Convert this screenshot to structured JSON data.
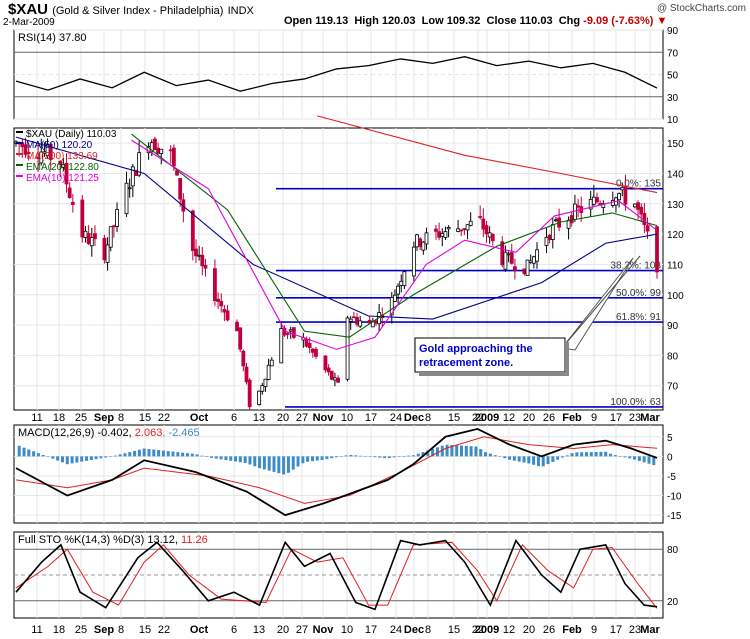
{
  "header": {
    "symbol": "$XAU",
    "name": "(Gold & Silver Index - Philadelphia)",
    "exchange": "INDX",
    "date": "2-Mar-2009",
    "open_label": "Open",
    "open": "119.13",
    "high_label": "High",
    "high": "120.03",
    "low_label": "Low",
    "low": "109.32",
    "close_label": "Close",
    "close": "110.03",
    "chg_label": "Chg",
    "chg": "-9.09 (-7.63%)",
    "watermark": "@ StockCharts.com"
  },
  "colors": {
    "up": "#000000",
    "down": "#c0003c",
    "ma50": "#00008b",
    "ma200": "#e02020",
    "ema20": "#006400",
    "ema10": "#e000e0",
    "fib": "#0000cc",
    "hist": "#3c8cc8",
    "stoch_d": "#e02020"
  },
  "x_labels": [
    "11",
    "18",
    "25",
    "Sep",
    "8",
    "15",
    "22",
    "Oct",
    "6",
    "13",
    "20",
    "27",
    "Nov",
    "10",
    "17",
    "24",
    "Dec",
    "8",
    "15",
    "22",
    "2009",
    "12",
    "20",
    "26",
    "Feb",
    "9",
    "17",
    "23",
    "Mar"
  ],
  "month_labels": [
    "Sep",
    "Oct",
    "Nov",
    "Dec",
    "2009",
    "Feb",
    "Mar"
  ],
  "rsi": {
    "label": "RSI(14) 37.80",
    "ticks": [
      "90",
      "70",
      "50",
      "30",
      "10"
    ]
  },
  "price": {
    "legend": [
      {
        "text": "$XAU (Daily) 110.03",
        "key": "up"
      },
      {
        "text": "MA(50) 120.20",
        "key": "ma50"
      },
      {
        "text": "MA(200) 133.69",
        "key": "ma200"
      },
      {
        "text": "EMA(20) 122.80",
        "key": "ema20"
      },
      {
        "text": "EMA(10) 121.25",
        "key": "ema10"
      }
    ],
    "ticks": [
      "150",
      "140",
      "130",
      "120",
      "110",
      "100",
      "90",
      "80",
      "70"
    ],
    "fib_labels": [
      "0.0%: 135",
      "38.2%: 108",
      "50.0%: 99",
      "61.8%: 91",
      "100.0%: 63"
    ],
    "annotation": [
      "Gold approaching the",
      "retracement zone."
    ]
  },
  "macd": {
    "label_prefix": "MACD(12,26,9)",
    "value": "-0.402",
    "signal": "2.063",
    "hist": "-2.465",
    "ticks": [
      "5",
      "0",
      "-5",
      "-10",
      "-15"
    ]
  },
  "sto": {
    "label_prefix": "Full STO %K(14,3) %D(3)",
    "k": "13.12",
    "d": "11.26",
    "ticks": [
      "80",
      "20"
    ]
  },
  "chart_data": {
    "type": "candlestick",
    "title": "$XAU (Gold & Silver Index - Philadelphia) INDX",
    "x_start": "2008-08-11",
    "x_end": "2009-03-02",
    "ohlc_last": {
      "open": 119.13,
      "high": 120.03,
      "low": 109.32,
      "close": 110.03
    },
    "close_path": [
      [
        "2008-08-11",
        150
      ],
      [
        "2008-08-18",
        148
      ],
      [
        "2008-08-25",
        144
      ],
      [
        "2008-09-01",
        120
      ],
      [
        "2008-09-08",
        114
      ],
      [
        "2008-09-15",
        135
      ],
      [
        "2008-09-22",
        152
      ],
      [
        "2008-09-29",
        146
      ],
      [
        "2008-10-06",
        115
      ],
      [
        "2008-10-13",
        100
      ],
      [
        "2008-10-20",
        88
      ],
      [
        "2008-10-24",
        64
      ],
      [
        "2008-10-27",
        68
      ],
      [
        "2008-11-03",
        88
      ],
      [
        "2008-11-10",
        85
      ],
      [
        "2008-11-17",
        75
      ],
      [
        "2008-11-21",
        70
      ],
      [
        "2008-11-24",
        93
      ],
      [
        "2008-12-01",
        90
      ],
      [
        "2008-12-08",
        98
      ],
      [
        "2008-12-15",
        117
      ],
      [
        "2008-12-22",
        120
      ],
      [
        "2009-01-05",
        124
      ],
      [
        "2009-01-12",
        112
      ],
      [
        "2009-01-20",
        109
      ],
      [
        "2009-01-26",
        120
      ],
      [
        "2009-02-02",
        126
      ],
      [
        "2009-02-09",
        130
      ],
      [
        "2009-02-17",
        134
      ],
      [
        "2009-02-23",
        130
      ],
      [
        "2009-02-27",
        119
      ],
      [
        "2009-03-02",
        110
      ]
    ],
    "ma50_path": [
      [
        0,
        152
      ],
      [
        0.2,
        140
      ],
      [
        0.37,
        110
      ],
      [
        0.55,
        93
      ],
      [
        0.65,
        92
      ],
      [
        0.82,
        104
      ],
      [
        0.92,
        117
      ],
      [
        1,
        120
      ]
    ],
    "ma200_path": [
      [
        0.47,
        159
      ],
      [
        0.7,
        146
      ],
      [
        0.85,
        140
      ],
      [
        1,
        133.7
      ]
    ],
    "ema20_path": [
      [
        0.18,
        153
      ],
      [
        0.33,
        128
      ],
      [
        0.45,
        88
      ],
      [
        0.52,
        86
      ],
      [
        0.62,
        100
      ],
      [
        0.75,
        116
      ],
      [
        0.85,
        124
      ],
      [
        0.93,
        127
      ],
      [
        1,
        122.8
      ]
    ],
    "ema10_path": [
      [
        0.18,
        151
      ],
      [
        0.3,
        135
      ],
      [
        0.42,
        88
      ],
      [
        0.5,
        82
      ],
      [
        0.56,
        86
      ],
      [
        0.64,
        110
      ],
      [
        0.7,
        118
      ],
      [
        0.78,
        114
      ],
      [
        0.84,
        126
      ],
      [
        0.94,
        131
      ],
      [
        1,
        121.25
      ]
    ],
    "fib_levels": [
      {
        "pct": "0.0%",
        "value": 135
      },
      {
        "pct": "38.2%",
        "value": 108
      },
      {
        "pct": "50.0%",
        "value": 99
      },
      {
        "pct": "61.8%",
        "value": 91
      },
      {
        "pct": "100.0%",
        "value": 63
      }
    ],
    "rsi_last": 37.8,
    "rsi_path": [
      [
        0,
        44
      ],
      [
        0.05,
        36
      ],
      [
        0.1,
        46
      ],
      [
        0.15,
        38
      ],
      [
        0.2,
        52
      ],
      [
        0.25,
        40
      ],
      [
        0.3,
        45
      ],
      [
        0.35,
        35
      ],
      [
        0.4,
        42
      ],
      [
        0.45,
        46
      ],
      [
        0.5,
        55
      ],
      [
        0.55,
        58
      ],
      [
        0.6,
        64
      ],
      [
        0.65,
        60
      ],
      [
        0.7,
        66
      ],
      [
        0.75,
        58
      ],
      [
        0.8,
        62
      ],
      [
        0.85,
        56
      ],
      [
        0.9,
        60
      ],
      [
        0.95,
        52
      ],
      [
        1,
        37.8
      ]
    ],
    "macd_line": [
      [
        0,
        -3
      ],
      [
        0.08,
        -10
      ],
      [
        0.15,
        -6
      ],
      [
        0.2,
        -1
      ],
      [
        0.28,
        -4
      ],
      [
        0.36,
        -9
      ],
      [
        0.42,
        -15
      ],
      [
        0.48,
        -12
      ],
      [
        0.53,
        -9
      ],
      [
        0.58,
        -6
      ],
      [
        0.62,
        -2
      ],
      [
        0.67,
        5
      ],
      [
        0.72,
        7
      ],
      [
        0.77,
        3
      ],
      [
        0.82,
        0
      ],
      [
        0.87,
        3
      ],
      [
        0.92,
        4
      ],
      [
        0.96,
        2
      ],
      [
        1,
        -0.4
      ]
    ],
    "macd_signal": [
      [
        0,
        -6
      ],
      [
        0.08,
        -8
      ],
      [
        0.15,
        -6
      ],
      [
        0.2,
        -3
      ],
      [
        0.3,
        -5
      ],
      [
        0.38,
        -8
      ],
      [
        0.45,
        -12
      ],
      [
        0.52,
        -10
      ],
      [
        0.6,
        -4
      ],
      [
        0.67,
        2
      ],
      [
        0.73,
        5
      ],
      [
        0.8,
        3
      ],
      [
        0.87,
        2
      ],
      [
        0.93,
        3
      ],
      [
        1,
        2.06
      ]
    ],
    "sto_k_path": [
      [
        0,
        30
      ],
      [
        0.04,
        65
      ],
      [
        0.07,
        85
      ],
      [
        0.1,
        30
      ],
      [
        0.14,
        12
      ],
      [
        0.19,
        70
      ],
      [
        0.22,
        88
      ],
      [
        0.26,
        55
      ],
      [
        0.3,
        20
      ],
      [
        0.34,
        30
      ],
      [
        0.38,
        15
      ],
      [
        0.42,
        88
      ],
      [
        0.45,
        60
      ],
      [
        0.49,
        75
      ],
      [
        0.53,
        18
      ],
      [
        0.56,
        10
      ],
      [
        0.6,
        90
      ],
      [
        0.63,
        85
      ],
      [
        0.67,
        90
      ],
      [
        0.7,
        65
      ],
      [
        0.74,
        15
      ],
      [
        0.78,
        90
      ],
      [
        0.82,
        50
      ],
      [
        0.85,
        30
      ],
      [
        0.88,
        80
      ],
      [
        0.92,
        85
      ],
      [
        0.95,
        40
      ],
      [
        0.98,
        15
      ],
      [
        1,
        13
      ]
    ],
    "sto_d_path": [
      [
        0,
        35
      ],
      [
        0.05,
        60
      ],
      [
        0.08,
        80
      ],
      [
        0.12,
        30
      ],
      [
        0.16,
        15
      ],
      [
        0.2,
        65
      ],
      [
        0.23,
        85
      ],
      [
        0.27,
        50
      ],
      [
        0.32,
        22
      ],
      [
        0.39,
        18
      ],
      [
        0.43,
        80
      ],
      [
        0.47,
        65
      ],
      [
        0.51,
        70
      ],
      [
        0.55,
        15
      ],
      [
        0.58,
        15
      ],
      [
        0.62,
        85
      ],
      [
        0.68,
        88
      ],
      [
        0.72,
        55
      ],
      [
        0.75,
        20
      ],
      [
        0.79,
        85
      ],
      [
        0.83,
        55
      ],
      [
        0.87,
        35
      ],
      [
        0.9,
        80
      ],
      [
        0.93,
        82
      ],
      [
        0.97,
        40
      ],
      [
        1,
        11.3
      ]
    ]
  }
}
